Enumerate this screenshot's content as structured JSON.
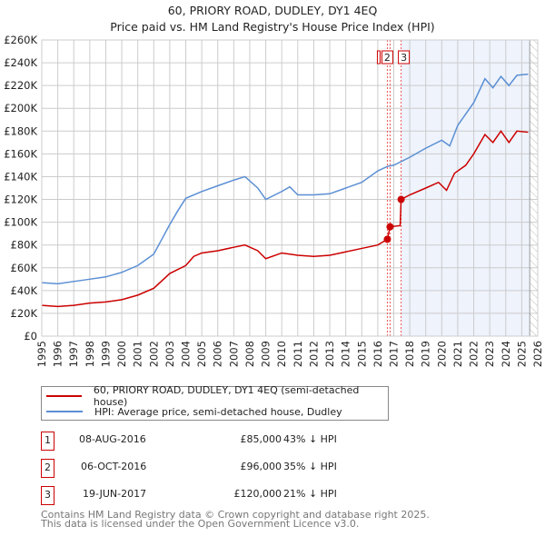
{
  "title": {
    "line1": "60, PRIORY ROAD, DUDLEY, DY1 4EQ",
    "line2": "Price paid vs. HM Land Registry's House Price Index (HPI)"
  },
  "colors": {
    "property": "#cc0000",
    "hpi": "#5b8fd4",
    "shade": "#eef3fc",
    "grid": "#cccccc"
  },
  "chart_data": {
    "type": "line",
    "xlim": [
      1995,
      2026
    ],
    "ylim": [
      0,
      260000
    ],
    "yticks": [
      0,
      20000,
      40000,
      60000,
      80000,
      100000,
      120000,
      140000,
      160000,
      180000,
      200000,
      220000,
      240000,
      260000
    ],
    "ytick_labels": [
      "£0",
      "£20K",
      "£40K",
      "£60K",
      "£80K",
      "£100K",
      "£120K",
      "£140K",
      "£160K",
      "£180K",
      "£200K",
      "£220K",
      "£240K",
      "£260K"
    ],
    "xticks": [
      1995,
      1996,
      1997,
      1998,
      1999,
      2000,
      2001,
      2002,
      2003,
      2004,
      2005,
      2006,
      2007,
      2008,
      2009,
      2010,
      2011,
      2012,
      2013,
      2014,
      2015,
      2016,
      2017,
      2018,
      2019,
      2020,
      2021,
      2022,
      2023,
      2024,
      2025,
      2026
    ],
    "shaded_range": [
      2017.46,
      2025.5
    ],
    "hatched_from": 2025.5,
    "series": [
      {
        "name": "60, PRIORY ROAD, DUDLEY, DY1 4EQ (semi-detached house)",
        "color": "#cc0000",
        "x": [
          1995,
          1996,
          1997,
          1998,
          1999,
          2000,
          2001,
          2002,
          2003,
          2004,
          2004.5,
          2005,
          2006,
          2007,
          2007.7,
          2008.5,
          2009,
          2010,
          2011,
          2012,
          2013,
          2014,
          2015,
          2016,
          2016.6,
          2016.77,
          2017.4,
          2017.46,
          2018,
          2019,
          2019.8,
          2020.3,
          2020.8,
          2021.5,
          2022,
          2022.7,
          2023.2,
          2023.7,
          2024.2,
          2024.7,
          2025.4
        ],
        "y": [
          27000,
          26000,
          27000,
          29000,
          30000,
          32000,
          36000,
          42000,
          55000,
          62000,
          70000,
          73000,
          75000,
          78000,
          80000,
          75000,
          68000,
          73000,
          71000,
          70000,
          71000,
          74000,
          77000,
          80000,
          85000,
          96000,
          97000,
          120000,
          124000,
          130000,
          135000,
          128000,
          143000,
          150000,
          160000,
          177000,
          170000,
          180000,
          170000,
          180000,
          179000
        ]
      },
      {
        "name": "HPI: Average price, semi-detached house, Dudley",
        "color": "#5b8fd4",
        "x": [
          1995,
          1996,
          1997,
          1998,
          1999,
          2000,
          2001,
          2002,
          2002.5,
          2003,
          2003.5,
          2004,
          2005,
          2006,
          2007,
          2007.7,
          2008.5,
          2009,
          2010,
          2010.5,
          2011,
          2012,
          2013,
          2014,
          2015,
          2016,
          2016.6,
          2017,
          2018,
          2019,
          2020,
          2020.5,
          2021,
          2022,
          2022.7,
          2023.2,
          2023.7,
          2024.2,
          2024.7,
          2025.4
        ],
        "y": [
          47000,
          46000,
          48000,
          50000,
          52000,
          56000,
          62000,
          72000,
          85000,
          98000,
          110000,
          121000,
          127000,
          132000,
          137000,
          140000,
          130000,
          120000,
          127000,
          131000,
          124000,
          124000,
          125000,
          130000,
          135000,
          145000,
          149000,
          150000,
          157000,
          165000,
          172000,
          167000,
          185000,
          205000,
          226000,
          218000,
          228000,
          220000,
          229000,
          230000
        ]
      }
    ],
    "sales": [
      {
        "label": "1",
        "x": 2016.6,
        "y": 85000
      },
      {
        "label": "2",
        "x": 2016.77,
        "y": 96000
      },
      {
        "label": "3",
        "x": 2017.46,
        "y": 120000
      }
    ]
  },
  "legend": {
    "property": "60, PRIORY ROAD, DUDLEY, DY1 4EQ (semi-detached house)",
    "hpi": "HPI: Average price, semi-detached house, Dudley"
  },
  "transactions": [
    {
      "num": "1",
      "date": "08-AUG-2016",
      "price": "£85,000",
      "hpi": "43% ↓ HPI"
    },
    {
      "num": "2",
      "date": "06-OCT-2016",
      "price": "£96,000",
      "hpi": "35% ↓ HPI"
    },
    {
      "num": "3",
      "date": "19-JUN-2017",
      "price": "£120,000",
      "hpi": "21% ↓ HPI"
    }
  ],
  "footer": {
    "line1": "Contains HM Land Registry data © Crown copyright and database right 2025.",
    "line2": "This data is licensed under the Open Government Licence v3.0."
  }
}
